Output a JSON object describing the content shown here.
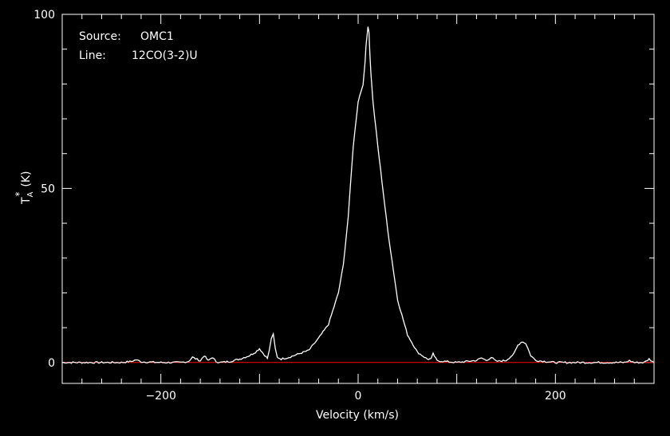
{
  "chart_data": {
    "type": "line",
    "annotations": {
      "source_label": "Source:",
      "source_value": "OMC1",
      "line_label": "Line:",
      "line_value": "12CO(3-2)U"
    },
    "xlabel": "Velocity (km/s)",
    "ylabel_main": "T",
    "ylabel_sup": "*",
    "ylabel_sub": "A",
    "ylabel_unit": "(K)",
    "xlim": [
      -300,
      300
    ],
    "ylim": [
      -6,
      100
    ],
    "x_ticks_major": [
      -200,
      0,
      200
    ],
    "x_tick_labels": [
      "−200",
      "0",
      "200"
    ],
    "y_ticks_major": [
      0,
      50,
      100
    ],
    "y_tick_labels": [
      "0",
      "50",
      "100"
    ],
    "grid": false,
    "colors": {
      "background": "#000000",
      "spectrum": "#ffffff",
      "baseline": "#ff0000",
      "text": "#ffffff"
    },
    "baseline_value": 0,
    "series": [
      {
        "x": [
          -300,
          -280,
          -260,
          -240,
          -230,
          -225,
          -220,
          -200,
          -180,
          -172,
          -168,
          -160,
          -156,
          -152,
          -148,
          -144,
          -140,
          -130,
          -120,
          -110,
          -104,
          -100,
          -96,
          -92,
          -90,
          -88,
          -86,
          -84,
          -82,
          -78,
          -70,
          -60,
          -50,
          -40,
          -30,
          -20,
          -15,
          -10,
          -5,
          0,
          3,
          5,
          7,
          8,
          9,
          10,
          11,
          12,
          13,
          15,
          20,
          30,
          40,
          50,
          60,
          70,
          74,
          76,
          80,
          100,
          110,
          120,
          125,
          130,
          135,
          140,
          150,
          158,
          162,
          166,
          170,
          175,
          180,
          190,
          200,
          210,
          230,
          250,
          260,
          270,
          275,
          280,
          290,
          295,
          300
        ],
        "y": [
          0,
          0,
          0,
          0,
          0.3,
          0.8,
          0.2,
          0,
          0,
          0.3,
          1.5,
          0.5,
          2.0,
          0.5,
          1.5,
          0.3,
          0,
          0.3,
          1.0,
          2.0,
          3.0,
          4.0,
          2.5,
          1.2,
          3.5,
          7.0,
          8.0,
          4.0,
          1.5,
          1.0,
          1.5,
          2.5,
          3.5,
          7.0,
          11.0,
          20.0,
          28.0,
          42.0,
          62.0,
          75.0,
          78.0,
          80.0,
          86.0,
          91.0,
          94.0,
          96.5,
          95.0,
          88.0,
          83.0,
          75.0,
          62.0,
          38.0,
          18.0,
          8.0,
          3.0,
          1.0,
          1.0,
          2.5,
          0.5,
          0,
          0.3,
          0.6,
          1.3,
          0.6,
          1.5,
          0.3,
          0.6,
          2.5,
          5.0,
          6.0,
          5.5,
          2.0,
          0.6,
          0.3,
          0,
          0,
          0,
          0,
          0,
          0,
          0.5,
          0,
          0,
          1.0,
          0
        ]
      }
    ]
  }
}
